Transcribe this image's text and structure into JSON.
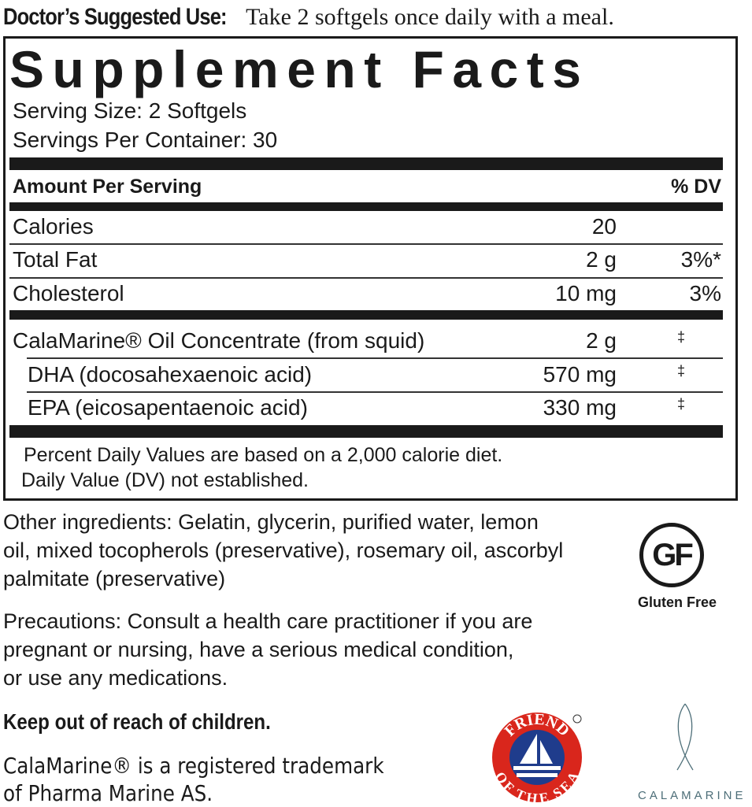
{
  "usage": {
    "label": "Doctor’s Suggested Use:",
    "text": "Take 2 softgels once daily with a meal."
  },
  "facts": {
    "title": "Supplement Facts",
    "serving_size": "Serving Size: 2 Softgels",
    "servings_per_container": "Servings Per Container: 30",
    "header_amount": "Amount Per Serving",
    "header_dv": "% DV",
    "rows": [
      {
        "name": "Calories",
        "amount": "20",
        "dv": ""
      },
      {
        "name": "Total Fat",
        "amount": "2 g",
        "dv": "3%*"
      },
      {
        "name": "Cholesterol",
        "amount": "10 mg",
        "dv": "3%"
      },
      {
        "name": "CalaMarine® Oil Concentrate (from squid)",
        "amount": "2 g",
        "dv": "‡"
      },
      {
        "name": "DHA (docosahexaenoic acid)",
        "amount": "570 mg",
        "dv": "‡"
      },
      {
        "name": "EPA (eicosapentaenoic acid)",
        "amount": "330 mg",
        "dv": "‡"
      }
    ],
    "footnote1": "Percent Daily Values are based on a 2,000 calorie diet.",
    "footnote2": "Daily Value (DV) not established."
  },
  "other_ingredients": [
    "Other ingredients: Gelatin, glycerin, purified water, lemon",
    "oil, mixed tocopherols (preservative), rosemary oil, ascorbyl",
    "palmitate (preservative)"
  ],
  "precautions": [
    "Precautions: Consult a health care practitioner if you are",
    "pregnant or nursing, have a serious medical condition,",
    "or use any medications."
  ],
  "warning": "Keep out of reach of children.",
  "trademark": [
    "CalaMarine® is a registered trademark",
    "of Pharma Marine AS."
  ],
  "logos": {
    "gluten_free": {
      "mark": "GF",
      "label": "Gluten Free"
    },
    "friend_of_the_sea": {
      "top": "FRIEND",
      "bottom": "OF THE SEA",
      "red": "#d9261c",
      "blue": "#1f3c8c"
    },
    "calamarine": {
      "label": "CALAMARINE",
      "color": "#4d6e78"
    }
  }
}
